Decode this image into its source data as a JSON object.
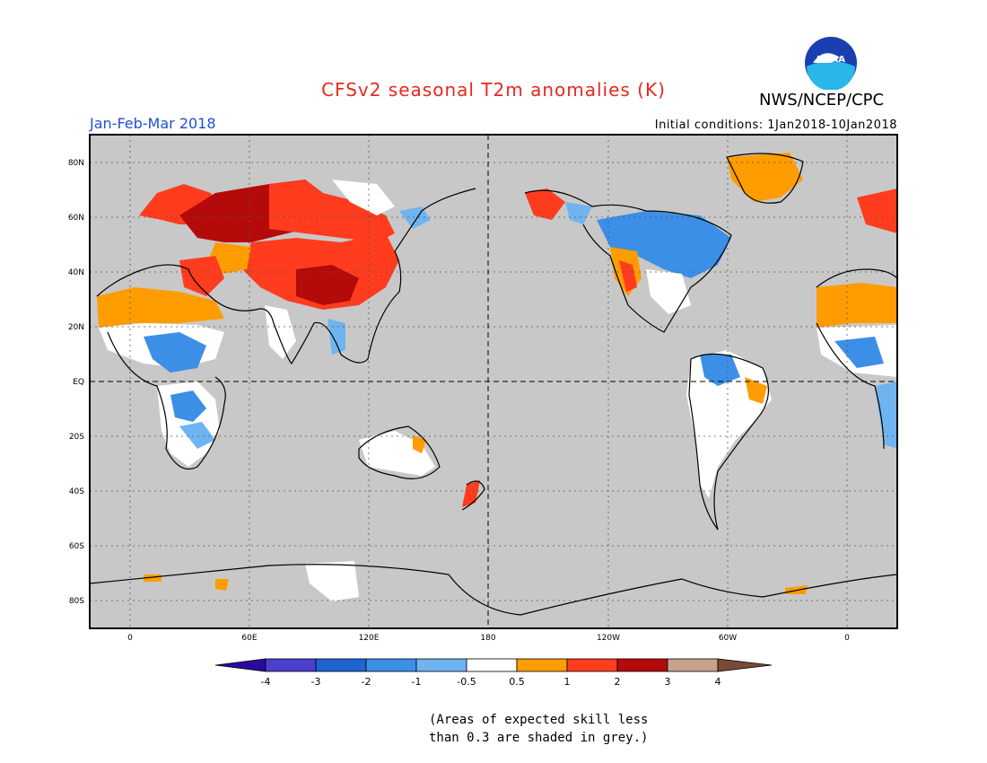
{
  "header": {
    "title": "CFSv2 seasonal T2m anomalies (K)",
    "period": "Jan-Feb-Mar 2018",
    "initial_conditions": "Initial conditions: 1Jan2018-10Jan2018",
    "organization": "NWS/NCEP/CPC",
    "logo_text": "NOAA"
  },
  "map": {
    "lat_labels": [
      "80N",
      "60N",
      "40N",
      "20N",
      "EQ",
      "20S",
      "40S",
      "60S",
      "80S"
    ],
    "lon_labels": [
      "0",
      "60E",
      "120E",
      "180",
      "120W",
      "60W",
      "0"
    ],
    "land_mask_color": "#c8c8c8",
    "ocean_color": "#c8c8c8"
  },
  "colorbar": {
    "labels": [
      "-4",
      "-3",
      "-2",
      "-1",
      "-0.5",
      "0.5",
      "1",
      "2",
      "3",
      "4"
    ],
    "colors": [
      "#2a0a9c",
      "#4a3fcf",
      "#1e64d2",
      "#3c8fe6",
      "#6fb4f0",
      "#ffffff",
      "#ff9d00",
      "#ff3c1e",
      "#b40a0a",
      "#c8a28c",
      "#7a4a34"
    ]
  },
  "footnote": {
    "line1": "(Areas of expected skill less",
    "line2": "than 0.3 are shaded in grey.)"
  }
}
